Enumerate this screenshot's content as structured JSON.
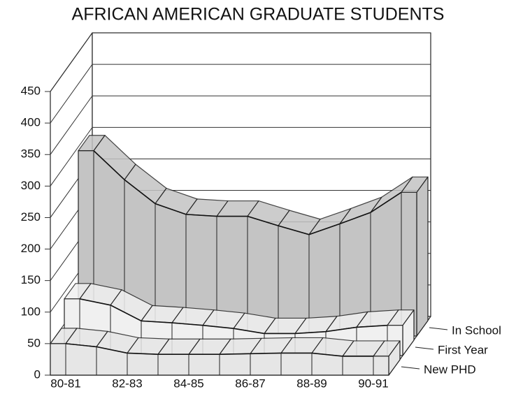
{
  "chart_data": {
    "type": "ribbon3d",
    "title": "AFRICAN AMERICAN GRADUATE STUDENTS",
    "categories": [
      "80-81",
      null,
      "82-83",
      null,
      "84-85",
      null,
      "86-87",
      null,
      "88-89",
      null,
      "90-91"
    ],
    "series": [
      {
        "name": "New PHD",
        "color": "#e6e6e6",
        "values": [
          50,
          45,
          35,
          33,
          33,
          33,
          34,
          35,
          35,
          30,
          30
        ]
      },
      {
        "name": "First Year",
        "color": "#f0f0f0",
        "values": [
          90,
          80,
          55,
          52,
          48,
          43,
          35,
          35,
          38,
          45,
          48
        ]
      },
      {
        "name": "In School",
        "color": "#c4c4c4",
        "values": [
          294,
          248,
          210,
          193,
          190,
          190,
          175,
          161,
          178,
          196,
          228
        ]
      }
    ],
    "ylim": [
      0,
      450
    ],
    "yticks": [
      0,
      50,
      100,
      150,
      200,
      250,
      300,
      350,
      400,
      450
    ],
    "grid": true
  }
}
